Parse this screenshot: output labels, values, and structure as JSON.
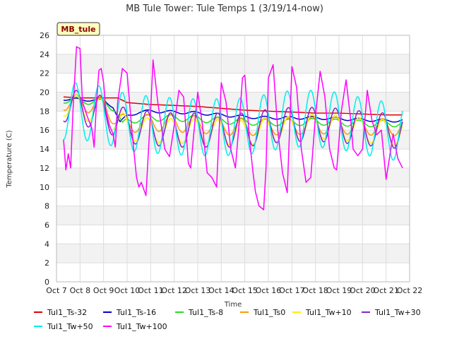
{
  "chart_data": {
    "type": "line",
    "title": "MB Tule Tower: Tule Temps 1 (3/19/14-now)",
    "xlabel": "Time",
    "ylabel": "Temperature (C)",
    "badge": "MB_tule",
    "ylim": [
      0,
      26
    ],
    "yticks": [
      0,
      2,
      4,
      6,
      8,
      10,
      12,
      14,
      16,
      18,
      20,
      22,
      24,
      26
    ],
    "xlim": [
      7,
      22
    ],
    "xticks": [
      7,
      8,
      9,
      10,
      11,
      12,
      13,
      14,
      15,
      16,
      17,
      18,
      19,
      20,
      21,
      22
    ],
    "xtick_labels": [
      "Oct 7",
      "Oct 8",
      "Oct 9",
      "Oct 10",
      "Oct 11",
      "Oct 12",
      "Oct 13",
      "Oct 14",
      "Oct 15",
      "Oct 16",
      "Oct 17",
      "Oct 18",
      "Oct 19",
      "Oct 20",
      "Oct 21",
      "Oct 22"
    ],
    "grid": true,
    "legend_position": "bottom",
    "series": [
      {
        "name": "Tul1_Ts-32",
        "color": "#dd0000",
        "x": [
          7.3,
          8.0,
          9.0,
          9.6,
          10.0,
          11.0,
          12.0,
          13.0,
          14.0,
          15.0,
          16.0,
          17.0,
          18.0,
          19.0,
          20.0,
          21.0,
          21.7
        ],
        "y": [
          19.5,
          19.4,
          19.4,
          19.4,
          18.9,
          18.7,
          18.6,
          18.5,
          18.3,
          18.1,
          18.0,
          17.9,
          17.8,
          17.8,
          17.7,
          17.6,
          17.6
        ]
      },
      {
        "name": "Tul1_Ts-16",
        "color": "#0000cc",
        "x": [
          7.3,
          8.0,
          8.5,
          9.0,
          9.4,
          9.7,
          10.0,
          10.5,
          11.0,
          12.0,
          13.0,
          14.0,
          15.0,
          16.0,
          17.0,
          18.0,
          19.0,
          20.0,
          21.0,
          21.7
        ],
        "y": [
          19.3,
          19.2,
          19.2,
          19.1,
          18.5,
          16.8,
          17.5,
          17.9,
          18.0,
          17.9,
          17.8,
          17.6,
          17.4,
          17.3,
          17.3,
          17.3,
          17.2,
          17.1,
          17.0,
          17.0
        ],
        "amp": 0.15,
        "phase": 0.6
      },
      {
        "name": "Tul1_Ts-8",
        "color": "#22dd22",
        "x": [
          7.3,
          8.0,
          9.0,
          9.5,
          9.8,
          10.0,
          11.0,
          12.0,
          13.0,
          14.0,
          15.0,
          16.0,
          17.0,
          18.0,
          19.0,
          20.0,
          21.0,
          21.7
        ],
        "y": [
          19.2,
          19.1,
          19.0,
          18.2,
          16.5,
          17.0,
          17.3,
          17.3,
          17.2,
          17.0,
          16.9,
          16.8,
          16.8,
          16.9,
          16.8,
          16.7,
          16.7,
          16.7
        ],
        "amp": 0.35,
        "phase": 0.6
      },
      {
        "name": "Tul1_Ts0",
        "color": "#ff9900",
        "x": [
          7.3,
          8.0,
          9.0,
          9.6,
          10.0,
          11.0,
          12.0,
          13.0,
          14.0,
          15.0,
          16.0,
          17.0,
          18.0,
          19.0,
          20.0,
          21.0,
          21.7
        ],
        "y": [
          19.0,
          18.8,
          18.6,
          17.0,
          16.6,
          16.8,
          16.7,
          16.6,
          16.4,
          16.3,
          16.4,
          16.4,
          16.5,
          16.5,
          16.4,
          16.3,
          16.3
        ],
        "amp": 0.9,
        "phase": 0.6
      },
      {
        "name": "Tul1_Tw+10",
        "color": "#ffee00",
        "x": [
          7.3,
          8.0,
          9.0,
          10.0,
          11.0,
          12.0,
          13.0,
          14.0,
          15.0,
          16.0,
          17.0,
          18.0,
          19.0,
          20.0,
          21.0,
          21.7
        ],
        "y": [
          18.8,
          18.3,
          18.0,
          16.2,
          16.0,
          15.9,
          15.9,
          15.8,
          15.7,
          16.0,
          16.2,
          16.4,
          16.3,
          16.0,
          15.8,
          15.6
        ],
        "amp": 1.3,
        "phase": 0.6
      },
      {
        "name": "Tul1_Tw+30",
        "color": "#8822cc",
        "x": [
          7.3,
          8.0,
          9.0,
          10.0,
          11.0,
          12.0,
          13.0,
          14.0,
          15.0,
          16.0,
          17.0,
          18.0,
          19.0,
          20.0,
          21.0,
          21.7
        ],
        "y": [
          18.7,
          18.3,
          17.8,
          16.4,
          16.2,
          16.0,
          16.0,
          16.0,
          16.0,
          16.4,
          16.6,
          16.6,
          16.5,
          16.2,
          16.0,
          15.8
        ],
        "amp": 1.8,
        "phase": 0.6
      },
      {
        "name": "Tul1_Tw+50",
        "color": "#00eeee",
        "x": [
          7.3,
          8.0,
          9.0,
          10.0,
          11.0,
          12.0,
          13.0,
          14.0,
          15.0,
          16.0,
          17.0,
          18.0,
          19.0,
          20.0,
          21.0,
          21.7
        ],
        "y": [
          18.0,
          18.0,
          17.6,
          16.8,
          16.6,
          16.4,
          16.3,
          16.3,
          16.4,
          16.8,
          17.2,
          17.2,
          17.0,
          16.4,
          16.0,
          15.6
        ],
        "amp": 3.0,
        "phase": 0.55
      },
      {
        "name": "Tul1_Tw+100",
        "color": "#ff00ff",
        "x": [
          7.3,
          7.4,
          7.5,
          7.6,
          7.7,
          7.85,
          8.0,
          8.1,
          8.3,
          8.5,
          8.6,
          8.7,
          8.8,
          8.9,
          9.0,
          9.1,
          9.25,
          9.4,
          9.5,
          9.6,
          9.8,
          10.0,
          10.2,
          10.4,
          10.5,
          10.6,
          10.8,
          11.0,
          11.1,
          11.3,
          11.6,
          11.8,
          12.0,
          12.2,
          12.4,
          12.6,
          12.7,
          12.9,
          13.0,
          13.2,
          13.4,
          13.6,
          13.8,
          14.0,
          14.2,
          14.4,
          14.6,
          14.8,
          14.9,
          15.0,
          15.2,
          15.35,
          15.45,
          15.6,
          15.8,
          15.9,
          16.0,
          16.2,
          16.4,
          16.6,
          16.8,
          17.0,
          17.2,
          17.4,
          17.6,
          17.8,
          18.0,
          18.2,
          18.4,
          18.6,
          18.8,
          18.9,
          19.1,
          19.3,
          19.5,
          19.6,
          19.8,
          20.0,
          20.2,
          20.4,
          20.6,
          20.8,
          21.0,
          21.3,
          21.5,
          21.7
        ],
        "y": [
          15.0,
          11.8,
          13.5,
          12.0,
          18.0,
          24.8,
          24.6,
          19.0,
          17.5,
          16.2,
          14.2,
          19.0,
          22.3,
          22.5,
          21.0,
          18.0,
          16.5,
          15.6,
          14.2,
          19.0,
          22.5,
          22.0,
          16.0,
          11.0,
          10.0,
          10.5,
          9.1,
          18.0,
          23.4,
          19.0,
          14.0,
          13.2,
          16.5,
          20.2,
          19.5,
          12.5,
          12.0,
          17.5,
          20.0,
          16.5,
          11.5,
          11.0,
          10.0,
          21.0,
          19.0,
          14.0,
          12.0,
          18.0,
          21.5,
          21.8,
          15.0,
          11.5,
          9.5,
          8.0,
          7.6,
          12.0,
          21.5,
          22.9,
          16.0,
          11.5,
          9.4,
          22.7,
          20.5,
          14.0,
          10.5,
          11.0,
          17.5,
          22.2,
          19.5,
          14.0,
          12.0,
          11.8,
          18.0,
          21.3,
          17.0,
          14.0,
          13.3,
          14.0,
          20.2,
          17.0,
          15.5,
          16.0,
          10.8,
          15.6,
          13.0,
          12.0
        ]
      }
    ]
  }
}
